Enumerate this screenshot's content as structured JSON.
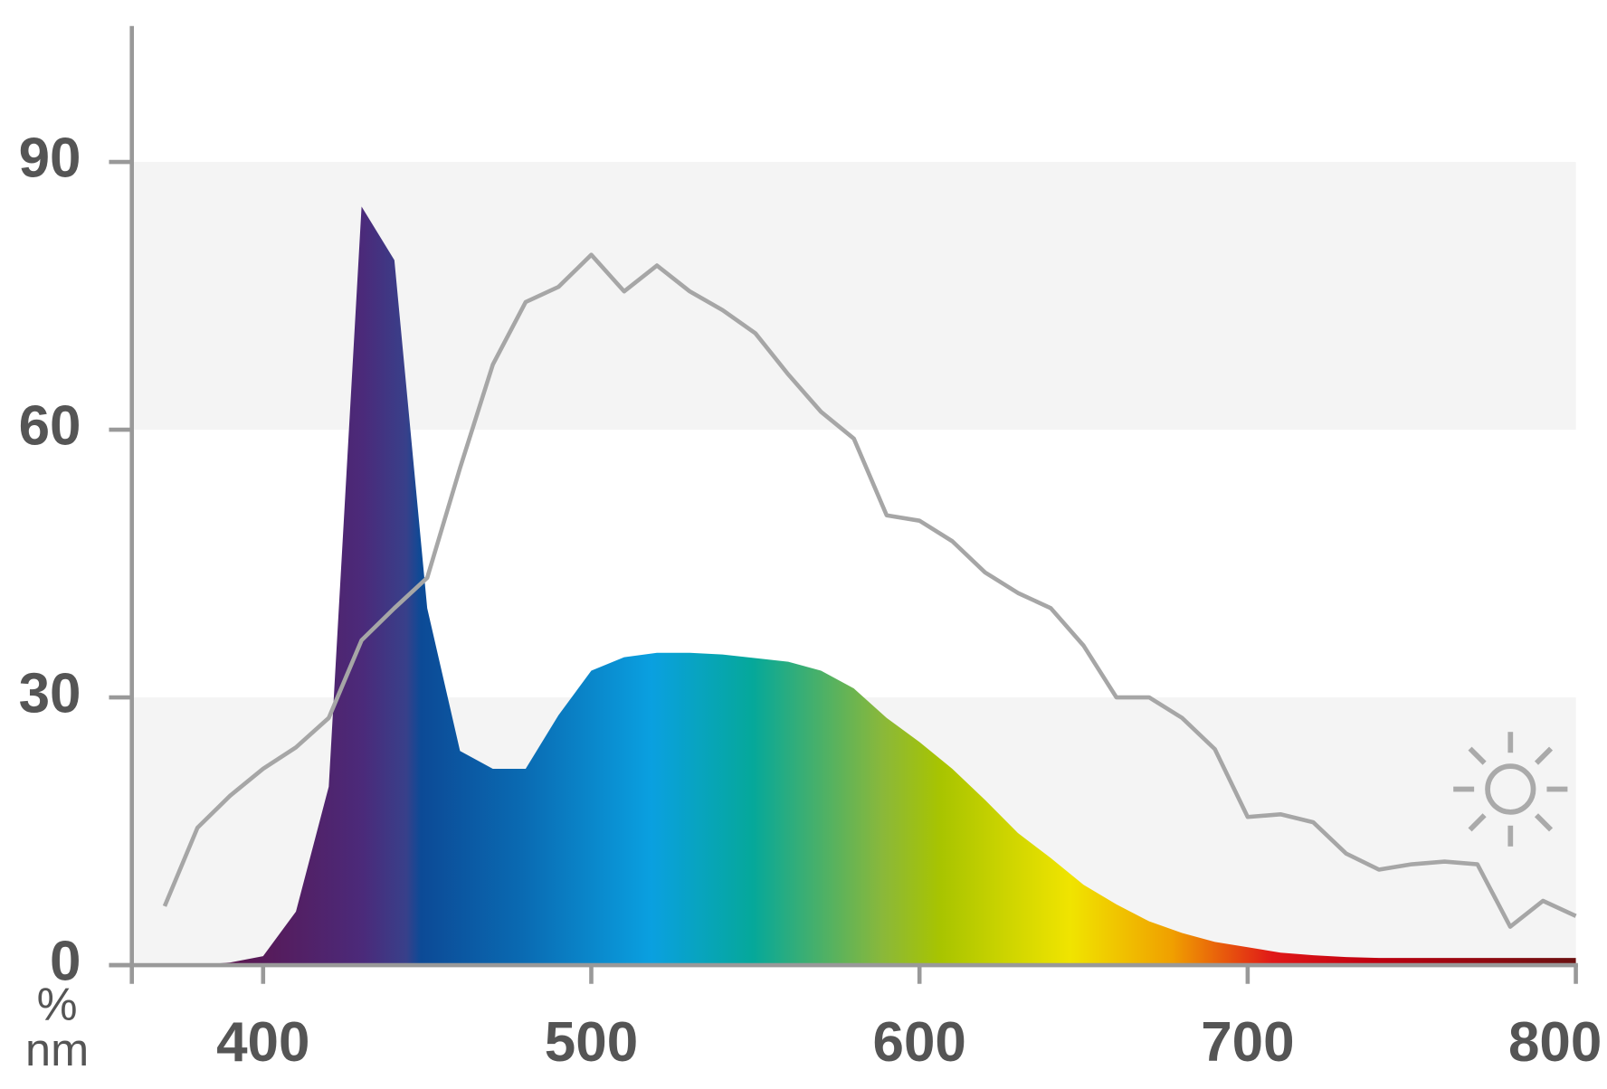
{
  "chart_data": {
    "type": "spectrum",
    "x_label": "nm",
    "y_label": "%",
    "x": [
      360,
      370,
      380,
      390,
      400,
      410,
      420,
      430,
      440,
      450,
      460,
      470,
      480,
      490,
      500,
      510,
      520,
      530,
      540,
      550,
      560,
      570,
      580,
      590,
      600,
      610,
      620,
      630,
      640,
      650,
      660,
      670,
      680,
      690,
      700,
      710,
      720,
      730,
      740,
      750,
      760,
      770,
      780,
      790,
      800
    ],
    "series": [
      {
        "kind": "area",
        "color": "gradient",
        "values": [
          0,
          0,
          0,
          0.3,
          1,
          6,
          20,
          85,
          79,
          40,
          24,
          22,
          22,
          28,
          33,
          34.5,
          35,
          35,
          34.8,
          34.4,
          34,
          33,
          31,
          27.7,
          25,
          22,
          18.5,
          14.8,
          12,
          9,
          6.8,
          4.9,
          3.6,
          2.6,
          2,
          1.4,
          1.1,
          0.9,
          0.8,
          0.8,
          0.8,
          0.8,
          0.8,
          0.8,
          0.8
        ]
      },
      {
        "kind": "line",
        "color": "#a6a6a6",
        "values": [
          null,
          6.6,
          15.4,
          19,
          22,
          24.4,
          27.7,
          36.4,
          40,
          43.4,
          55.7,
          67.3,
          74.3,
          76,
          79.6,
          75.5,
          78.4,
          75.5,
          73.4,
          70.8,
          66.2,
          62,
          59,
          50.4,
          49.8,
          47.5,
          44,
          41.7,
          40,
          35.8,
          30,
          30,
          27.7,
          24.2,
          16.6,
          16.9,
          16,
          12.5,
          10.7,
          11.3,
          11.6,
          11.3,
          4.3,
          7.2,
          5.5
        ]
      }
    ],
    "xlim": [
      360,
      800
    ],
    "xticks": [
      400,
      500,
      600,
      700,
      800
    ],
    "ylim": [
      0,
      105
    ],
    "yticks": [
      0,
      30,
      60,
      90
    ],
    "grid": true
  }
}
